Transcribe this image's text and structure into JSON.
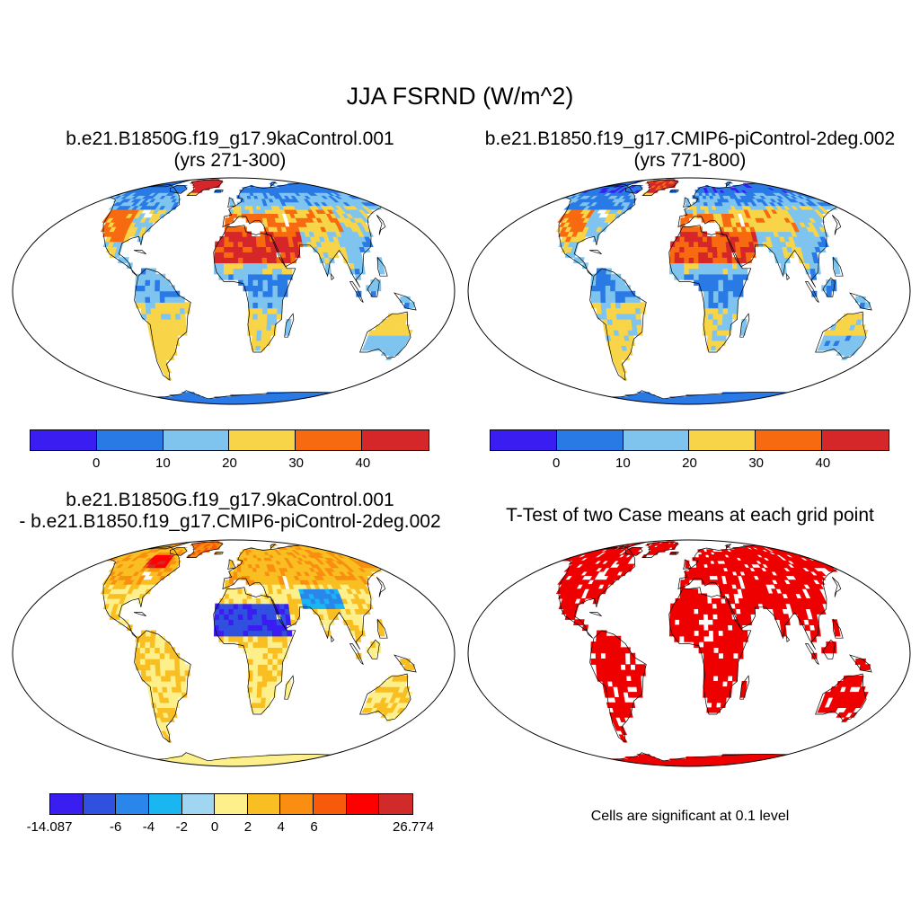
{
  "main_title": "JJA FSRND (W/m^2)",
  "panels": [
    {
      "title_line1": "b.e21.B1850G.f19_g17.9kaControl.001",
      "title_line2": "(yrs 271-300)"
    },
    {
      "title_line1": "b.e21.B1850.f19_g17.CMIP6-piControl-2deg.002",
      "title_line2": "(yrs 771-800)"
    },
    {
      "title_line1": "b.e21.B1850G.f19_g17.9kaControl.001",
      "title_line2": "- b.e21.B1850.f19_g17.CMIP6-piControl-2deg.002"
    },
    {
      "title_line1": "T-Test of two Case means at each grid point"
    }
  ],
  "colorbar_top": {
    "colors": [
      "#3a1df0",
      "#2a7ae6",
      "#7ec4ee",
      "#f8d548",
      "#f76a10",
      "#d5262a"
    ],
    "labels": [
      "0",
      "10",
      "20",
      "30",
      "40"
    ]
  },
  "colorbar_diff": {
    "colors": [
      "#3a1df0",
      "#3050e0",
      "#2a86ea",
      "#1ab6f2",
      "#a0d6f2",
      "#fdf08a",
      "#f9bf22",
      "#f98e10",
      "#f75a08",
      "#ff0000",
      "#d02a2a"
    ],
    "labels": [
      "-14.087",
      "-6",
      "-4",
      "-2",
      "0",
      "2",
      "4",
      "6",
      "26.774"
    ]
  },
  "significance_note": "Cells are significant at 0.1 level",
  "colors": {
    "significant": "#ee0000",
    "ocean": "#ffffff",
    "coast": "#000000"
  }
}
